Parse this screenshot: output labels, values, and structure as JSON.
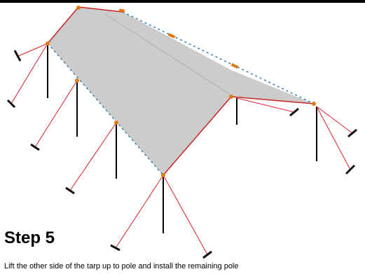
{
  "step": {
    "title": "Step 5",
    "description": "Lift the other side of the tarp up to pole and install the remaining pole"
  },
  "colors": {
    "tarp": "#cccccc",
    "edge_rope": "#cc2222",
    "ratchet": "#e07a10",
    "pole": "#000000",
    "eyelet": "#2f7fb3",
    "guy_line": "#e0202a"
  }
}
